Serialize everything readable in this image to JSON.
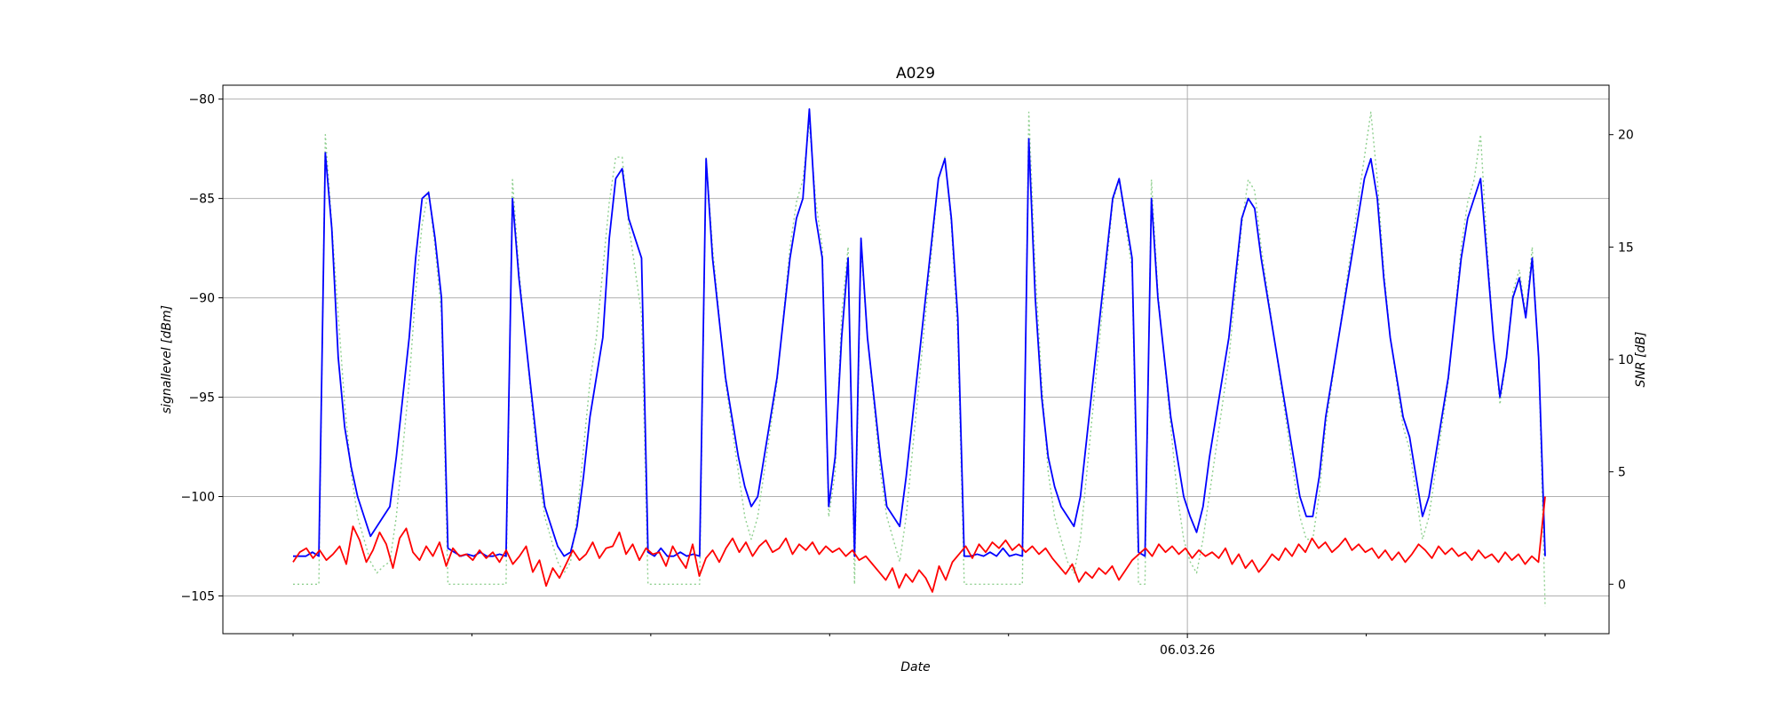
{
  "chart_data": {
    "type": "line",
    "title": "A029",
    "xlabel": "Date",
    "ylabel": "signallevel [dBm]",
    "y2label": "SNR [dB]",
    "x_tick_labels": [
      "06.03.26"
    ],
    "ylim": [
      -106.9,
      -79.3
    ],
    "y_ticks": [
      -105,
      -100,
      -95,
      -90,
      -85,
      -80
    ],
    "y2lim": [
      -2.2,
      22.2
    ],
    "y2_ticks": [
      0,
      5,
      10,
      15,
      20
    ],
    "grid": true,
    "colors": {
      "signal": "#0000ff",
      "noise": "#ff0000",
      "snr": "#90d090"
    },
    "series": [
      {
        "key": "signal",
        "axis": "left",
        "values": [
          -103,
          -103,
          -103,
          -102.8,
          -103,
          -82.7,
          -86.5,
          -93,
          -96.5,
          -98.5,
          -100,
          -101,
          -102,
          -101.5,
          -101,
          -100.5,
          -98,
          -95,
          -92,
          -88,
          -85,
          -84.7,
          -87,
          -90,
          -102.6,
          -102.8,
          -103,
          -102.9,
          -103,
          -102.8,
          -103,
          -103,
          -102.9,
          -103,
          -85,
          -89,
          -92,
          -95,
          -98,
          -100.5,
          -101.5,
          -102.5,
          -103,
          -102.8,
          -101.5,
          -99,
          -96,
          -94,
          -92,
          -87,
          -84,
          -83.5,
          -86,
          -87,
          -88,
          -102.8,
          -103,
          -102.6,
          -103,
          -103,
          -102.8,
          -103,
          -102.9,
          -103,
          -83,
          -88,
          -91,
          -94,
          -96,
          -98,
          -99.5,
          -100.5,
          -100,
          -98,
          -96,
          -94,
          -91,
          -88,
          -86,
          -85,
          -80.5,
          -86,
          -88,
          -100.5,
          -98,
          -92,
          -88,
          -103,
          -87,
          -92,
          -95,
          -98,
          -100.5,
          -101,
          -101.5,
          -99,
          -96,
          -93,
          -90,
          -87,
          -84,
          -83,
          -86,
          -91,
          -103,
          -103,
          -102.9,
          -103,
          -102.8,
          -103,
          -102.6,
          -103,
          -102.9,
          -103,
          -82,
          -90,
          -95,
          -98,
          -99.5,
          -100.5,
          -101,
          -101.5,
          -100,
          -97,
          -94,
          -91,
          -88,
          -85,
          -84,
          -86,
          -88,
          -102.8,
          -103,
          -85,
          -90,
          -93,
          -96,
          -98,
          -100,
          -101,
          -101.8,
          -100.5,
          -98,
          -96,
          -94,
          -92,
          -89,
          -86,
          -85,
          -85.5,
          -88,
          -90,
          -92,
          -94,
          -96,
          -98,
          -100,
          -101,
          -101,
          -99,
          -96,
          -94,
          -92,
          -90,
          -88,
          -86,
          -84,
          -83,
          -85,
          -89,
          -92,
          -94,
          -96,
          -97,
          -99,
          -101,
          -100,
          -98,
          -96,
          -94,
          -91,
          -88,
          -86,
          -85,
          -84,
          -88,
          -92,
          -95,
          -93,
          -90,
          -89,
          -91,
          -88,
          -93,
          -103
        ]
      },
      {
        "key": "noise",
        "axis": "left",
        "values": [
          -103.3,
          -102.8,
          -102.6,
          -103.1,
          -102.7,
          -103.2,
          -102.9,
          -102.5,
          -103.4,
          -101.5,
          -102.2,
          -103.3,
          -102.7,
          -101.8,
          -102.4,
          -103.6,
          -102.1,
          -101.6,
          -102.8,
          -103.2,
          -102.5,
          -103,
          -102.3,
          -103.5,
          -102.6,
          -103,
          -102.9,
          -103.2,
          -102.7,
          -103.1,
          -102.8,
          -103.3,
          -102.7,
          -103.4,
          -103,
          -102.5,
          -103.8,
          -103.2,
          -104.5,
          -103.6,
          -104.1,
          -103.4,
          -102.7,
          -103.2,
          -102.9,
          -102.3,
          -103.1,
          -102.6,
          -102.5,
          -101.8,
          -102.9,
          -102.4,
          -103.2,
          -102.6,
          -102.9,
          -102.8,
          -103.5,
          -102.5,
          -103.1,
          -103.6,
          -102.4,
          -104,
          -103.1,
          -102.7,
          -103.3,
          -102.6,
          -102.1,
          -102.8,
          -102.3,
          -103,
          -102.5,
          -102.2,
          -102.8,
          -102.6,
          -102.1,
          -102.9,
          -102.4,
          -102.7,
          -102.3,
          -102.9,
          -102.5,
          -102.8,
          -102.6,
          -103,
          -102.7,
          -103.2,
          -103,
          -103.4,
          -103.8,
          -104.2,
          -103.6,
          -104.6,
          -103.9,
          -104.3,
          -103.7,
          -104.1,
          -104.8,
          -103.5,
          -104.2,
          -103.3,
          -102.9,
          -102.5,
          -103.1,
          -102.4,
          -102.8,
          -102.3,
          -102.6,
          -102.2,
          -102.7,
          -102.4,
          -102.8,
          -102.5,
          -102.9,
          -102.6,
          -103.1,
          -103.5,
          -103.9,
          -103.4,
          -104.3,
          -103.8,
          -104.1,
          -103.6,
          -103.9,
          -103.5,
          -104.2,
          -103.7,
          -103.2,
          -102.9,
          -102.6,
          -103,
          -102.4,
          -102.8,
          -102.5,
          -102.9,
          -102.6,
          -103.1,
          -102.7,
          -103,
          -102.8,
          -103.1,
          -102.6,
          -103.4,
          -102.9,
          -103.6,
          -103.2,
          -103.8,
          -103.4,
          -102.9,
          -103.2,
          -102.6,
          -103,
          -102.4,
          -102.8,
          -102.1,
          -102.6,
          -102.3,
          -102.8,
          -102.5,
          -102.1,
          -102.7,
          -102.4,
          -102.8,
          -102.6,
          -103.1,
          -102.7,
          -103.2,
          -102.8,
          -103.3,
          -102.9,
          -102.4,
          -102.7,
          -103.1,
          -102.5,
          -102.9,
          -102.6,
          -103,
          -102.8,
          -103.2,
          -102.7,
          -103.1,
          -102.9,
          -103.3,
          -102.8,
          -103.2,
          -102.9,
          -103.4,
          -103,
          -103.3,
          -100
        ]
      },
      {
        "key": "snr",
        "axis": "right",
        "dashed": true,
        "values": [
          0,
          0,
          0,
          0,
          0,
          20,
          16,
          12,
          8,
          5,
          3,
          2,
          1,
          0.5,
          0.8,
          1,
          3,
          6,
          9,
          13,
          16,
          17.5,
          15,
          12,
          0,
          0,
          0,
          0,
          0,
          0,
          0,
          0,
          0,
          0,
          18,
          14,
          11,
          8,
          5,
          3,
          2,
          1,
          0.5,
          1,
          3,
          6,
          9,
          11,
          14,
          17,
          19,
          19,
          16,
          14,
          12,
          0,
          0,
          0,
          0,
          0,
          0,
          0,
          0,
          0,
          19,
          15,
          12,
          9,
          7,
          5,
          3,
          2,
          3,
          5,
          7,
          9,
          12,
          15,
          17,
          18,
          20.5,
          17,
          15,
          3,
          5,
          12,
          15,
          0,
          15,
          11,
          8,
          5,
          3,
          2,
          1,
          3,
          6,
          9,
          12,
          15,
          18,
          19,
          16,
          11,
          0,
          0,
          0,
          0,
          0,
          0,
          0,
          0,
          0,
          0,
          21,
          14,
          9,
          5,
          3,
          2,
          1,
          0.5,
          2,
          5,
          8,
          11,
          14,
          17,
          18,
          16,
          14,
          0,
          0,
          18,
          13,
          10,
          7,
          4,
          2,
          1,
          0.5,
          2,
          4,
          6,
          8,
          10,
          13,
          16,
          18,
          17.5,
          15,
          13,
          11,
          9,
          7,
          5,
          3,
          2,
          2,
          4,
          7,
          9,
          11,
          13,
          15,
          17,
          19,
          21,
          18,
          14,
          11,
          9,
          7,
          6,
          4,
          2,
          3,
          5,
          7,
          9,
          12,
          15,
          17,
          18,
          20,
          15,
          11,
          8,
          10,
          13,
          14,
          12,
          15,
          10,
          -1
        ]
      }
    ]
  }
}
